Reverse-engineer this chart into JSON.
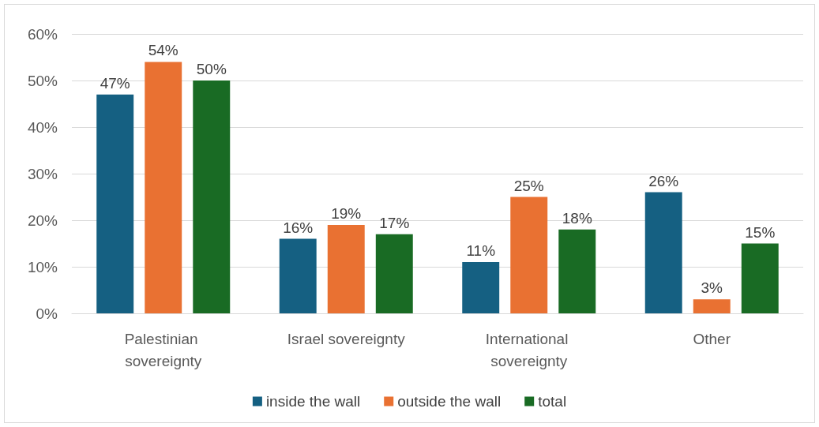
{
  "chart_data": {
    "type": "bar",
    "categories": [
      "Palestinian sovereignty",
      "Israel sovereignty",
      "International sovereignty",
      "Other"
    ],
    "series": [
      {
        "name": "inside the wall",
        "color": "#156082",
        "values": [
          47,
          16,
          11,
          26
        ],
        "value_labels": [
          "47%",
          "16%",
          "11%",
          "26%"
        ]
      },
      {
        "name": "outside the wall",
        "color": "#e97132",
        "values": [
          54,
          19,
          25,
          3
        ],
        "value_labels": [
          "54%",
          "19%",
          "25%",
          "3%"
        ]
      },
      {
        "name": "total",
        "color": "#196b24",
        "values": [
          50,
          17,
          18,
          15
        ],
        "value_labels": [
          "50%",
          "17%",
          "18%",
          "15%"
        ]
      }
    ],
    "ylim": [
      0,
      60
    ],
    "yticks": [
      {
        "value": 0,
        "label": "0%"
      },
      {
        "value": 10,
        "label": "10%"
      },
      {
        "value": 20,
        "label": "20%"
      },
      {
        "value": 30,
        "label": "30%"
      },
      {
        "value": 40,
        "label": "40%"
      },
      {
        "value": 50,
        "label": "50%"
      },
      {
        "value": 60,
        "label": "60%"
      }
    ],
    "grid": "y",
    "legend": "bottom"
  }
}
